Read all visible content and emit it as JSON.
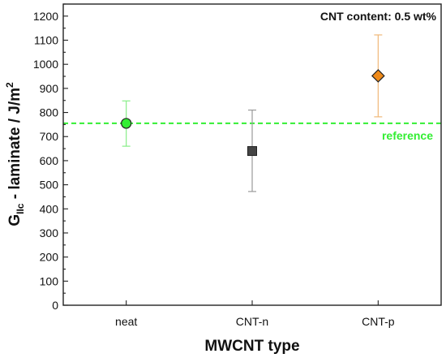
{
  "chart_data": {
    "type": "scatter",
    "title": "",
    "annotation": "CNT content: 0.5 wt%",
    "xlabel": "MWCNT type",
    "ylabel": {
      "main": "G",
      "sub": "IIc",
      "mid": " - laminate / J/m",
      "sup": "2"
    },
    "ylim": [
      0,
      1250
    ],
    "yticks": [
      0,
      100,
      200,
      300,
      400,
      500,
      600,
      700,
      800,
      900,
      1000,
      1100,
      1200
    ],
    "categories": [
      "neat",
      "CNT-n",
      "CNT-p"
    ],
    "points": [
      {
        "category": "neat",
        "value": 755,
        "err_low": 660,
        "err_high": 848,
        "marker": "circle",
        "color": "#33ee33",
        "err_color": "#88ee88"
      },
      {
        "category": "CNT-n",
        "value": 640,
        "err_low": 472,
        "err_high": 810,
        "marker": "square",
        "color": "#444444",
        "err_color": "#9a9a9a"
      },
      {
        "category": "CNT-p",
        "value": 952,
        "err_low": 782,
        "err_high": 1122,
        "marker": "diamond",
        "color": "#ee8a1a",
        "err_color": "#f0b878"
      }
    ],
    "reference": {
      "value": 755,
      "label": "reference",
      "color": "#33ee33"
    },
    "grid": false
  }
}
